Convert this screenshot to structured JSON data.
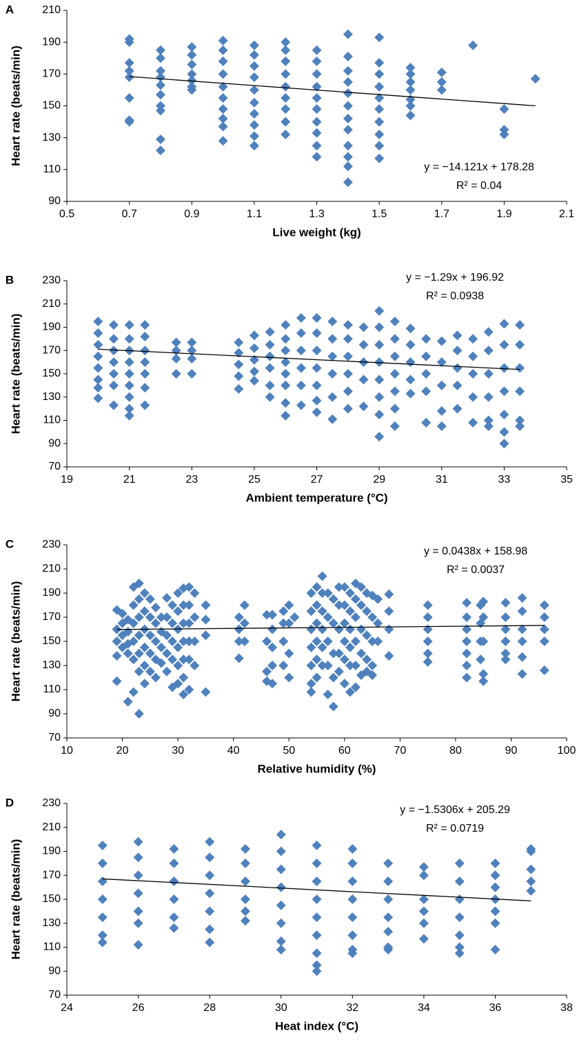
{
  "chart_data": [
    {
      "type": "scatter",
      "panel_label": "A",
      "x_label": "Live weight (kg)",
      "y_label": "Heart rate (beats/min)",
      "color": "#4f81bd",
      "equation": "y = −14.121x + 178.28",
      "r_squared": "R² = 0.04",
      "trendline": {
        "slope": -14.121,
        "intercept": 178.28
      },
      "xlim": [
        0.5,
        2.1
      ],
      "xticks": [
        0.5,
        0.7,
        0.9,
        1.1,
        1.3,
        1.5,
        1.7,
        1.9,
        2.1
      ],
      "ylim": [
        90,
        210
      ],
      "yticks": [
        90,
        110,
        130,
        150,
        170,
        190,
        210
      ],
      "x": [
        0.7,
        0.7,
        0.7,
        0.7,
        0.7,
        0.7,
        0.7,
        0.7,
        0.8,
        0.8,
        0.8,
        0.8,
        0.8,
        0.8,
        0.8,
        0.8,
        0.8,
        0.8,
        0.9,
        0.9,
        0.9,
        0.9,
        0.9,
        0.9,
        0.9,
        1.0,
        1.0,
        1.0,
        1.0,
        1.0,
        1.0,
        1.0,
        1.0,
        1.0,
        1.0,
        1.1,
        1.1,
        1.1,
        1.1,
        1.1,
        1.1,
        1.1,
        1.1,
        1.1,
        1.1,
        1.2,
        1.2,
        1.2,
        1.2,
        1.2,
        1.2,
        1.2,
        1.2,
        1.2,
        1.3,
        1.3,
        1.3,
        1.3,
        1.3,
        1.3,
        1.3,
        1.3,
        1.3,
        1.3,
        1.4,
        1.4,
        1.4,
        1.4,
        1.4,
        1.4,
        1.4,
        1.4,
        1.4,
        1.4,
        1.4,
        1.4,
        1.5,
        1.5,
        1.5,
        1.5,
        1.5,
        1.5,
        1.5,
        1.5,
        1.5,
        1.5,
        1.6,
        1.6,
        1.6,
        1.6,
        1.6,
        1.6,
        1.6,
        1.7,
        1.7,
        1.7,
        1.8,
        1.9,
        1.9,
        1.9,
        2.0
      ],
      "values": [
        192,
        190,
        177,
        172,
        168,
        155,
        141,
        140,
        185,
        180,
        172,
        168,
        163,
        157,
        150,
        147,
        129,
        122,
        187,
        182,
        176,
        170,
        166,
        162,
        160,
        191,
        185,
        178,
        170,
        162,
        155,
        148,
        142,
        137,
        128,
        188,
        182,
        175,
        168,
        160,
        152,
        145,
        138,
        131,
        125,
        190,
        185,
        178,
        170,
        162,
        155,
        148,
        140,
        132,
        185,
        178,
        170,
        162,
        155,
        148,
        140,
        133,
        125,
        118,
        195,
        181,
        172,
        165,
        158,
        150,
        142,
        135,
        125,
        118,
        112,
        102,
        193,
        177,
        170,
        162,
        155,
        148,
        140,
        132,
        125,
        117,
        174,
        170,
        165,
        160,
        154,
        150,
        144,
        171,
        165,
        160,
        188,
        148,
        135,
        132,
        167
      ]
    },
    {
      "type": "scatter",
      "panel_label": "B",
      "x_label": "Ambient temperature (°C)",
      "y_label": "Heart rate (beats/min)",
      "color": "#4f81bd",
      "equation": "y = −1.29x + 196.92",
      "r_squared": "R² = 0.0938",
      "trendline": {
        "slope": -1.29,
        "intercept": 196.92
      },
      "xlim": [
        19,
        35
      ],
      "xticks": [
        19,
        21,
        23,
        25,
        27,
        29,
        31,
        33,
        35
      ],
      "ylim": [
        70,
        230
      ],
      "yticks": [
        70,
        90,
        110,
        130,
        150,
        170,
        190,
        210,
        230
      ],
      "x": [
        20,
        20,
        20,
        20,
        20,
        20,
        20,
        20,
        20.5,
        20.5,
        20.5,
        20.5,
        20.5,
        20.5,
        20.5,
        21,
        21,
        21,
        21,
        21,
        21,
        21,
        21,
        21,
        21.5,
        21.5,
        21.5,
        21.5,
        21.5,
        21.5,
        21.5,
        22.5,
        22.5,
        22.5,
        22.5,
        23,
        23,
        23,
        23,
        24.5,
        24.5,
        24.5,
        24.5,
        24.5,
        25,
        25,
        25,
        25,
        25,
        25.5,
        25.5,
        25.5,
        25.5,
        25.5,
        25.5,
        26,
        26,
        26,
        26,
        26,
        26,
        26,
        26,
        26.5,
        26.5,
        26.5,
        26.5,
        26.5,
        26.5,
        27,
        27,
        27,
        27,
        27,
        27,
        27,
        27.5,
        27.5,
        27.5,
        27.5,
        27.5,
        27.5,
        28,
        28,
        28,
        28,
        28,
        28,
        28.5,
        28.5,
        28.5,
        28.5,
        28.5,
        29,
        29,
        29,
        29,
        29,
        29,
        29,
        29,
        29.5,
        29.5,
        29.5,
        29.5,
        29.5,
        29.5,
        29.5,
        30,
        30,
        30,
        30,
        30,
        30.5,
        30.5,
        30.5,
        30.5,
        30.5,
        31,
        31,
        31,
        31,
        31,
        31.5,
        31.5,
        31.5,
        31.5,
        31.5,
        32,
        32,
        32,
        32,
        32,
        32.5,
        32.5,
        32.5,
        32.5,
        32.5,
        32.5,
        33,
        33,
        33,
        33,
        33,
        33,
        33,
        33.5,
        33.5,
        33.5,
        33.5,
        33.5,
        33.5
      ],
      "values": [
        195,
        185,
        175,
        165,
        155,
        145,
        138,
        129,
        192,
        180,
        170,
        160,
        150,
        140,
        123,
        192,
        180,
        170,
        160,
        150,
        140,
        130,
        120,
        114,
        192,
        182,
        170,
        160,
        150,
        138,
        123,
        177,
        170,
        163,
        150,
        177,
        170,
        163,
        150,
        177,
        168,
        158,
        148,
        137,
        183,
        172,
        162,
        152,
        144,
        186,
        175,
        165,
        155,
        140,
        130,
        192,
        180,
        170,
        160,
        150,
        140,
        125,
        114,
        198,
        185,
        170,
        155,
        140,
        123,
        198,
        185,
        170,
        155,
        140,
        127,
        117,
        195,
        180,
        165,
        150,
        130,
        111,
        192,
        180,
        165,
        150,
        135,
        120,
        190,
        175,
        160,
        145,
        122,
        204,
        190,
        175,
        160,
        145,
        130,
        115,
        96,
        195,
        180,
        165,
        150,
        135,
        120,
        105,
        189,
        175,
        160,
        145,
        133,
        180,
        165,
        150,
        135,
        108,
        178,
        160,
        140,
        118,
        105,
        183,
        170,
        155,
        140,
        120,
        180,
        165,
        150,
        130,
        108,
        186,
        170,
        150,
        130,
        110,
        105,
        193,
        175,
        155,
        135,
        115,
        100,
        90,
        192,
        175,
        155,
        135,
        110,
        105
      ]
    },
    {
      "type": "scatter",
      "panel_label": "C",
      "x_label": "Relative humidity (%)",
      "y_label": "Heart rate (beats/min)",
      "color": "#4f81bd",
      "equation": "y = 0.0438x + 158.98",
      "r_squared": "R² = 0.0037",
      "trendline": {
        "slope": 0.0438,
        "intercept": 158.98
      },
      "xlim": [
        10,
        100
      ],
      "xticks": [
        10,
        20,
        30,
        40,
        50,
        60,
        70,
        80,
        90,
        100
      ],
      "ylim": [
        70,
        230
      ],
      "yticks": [
        70,
        90,
        110,
        130,
        150,
        170,
        190,
        210,
        230
      ],
      "x": [
        19,
        19,
        19,
        19,
        19,
        20,
        20,
        20,
        20,
        21,
        21,
        21,
        21,
        21,
        22,
        22,
        22,
        22,
        22,
        22,
        23,
        23,
        23,
        23,
        23,
        23,
        23,
        24,
        24,
        24,
        24,
        24,
        24,
        25,
        25,
        25,
        25,
        25,
        26,
        26,
        26,
        26,
        26,
        27,
        27,
        27,
        27,
        28,
        28,
        28,
        28,
        28,
        29,
        29,
        29,
        29,
        29,
        30,
        30,
        30,
        30,
        30,
        30,
        31,
        31,
        31,
        31,
        31,
        31,
        31,
        32,
        32,
        32,
        32,
        32,
        32,
        33,
        33,
        33,
        33,
        35,
        35,
        35,
        35,
        41,
        41,
        41,
        41,
        42,
        42,
        42,
        46,
        46,
        46,
        46,
        47,
        47,
        47,
        47,
        47,
        49,
        49,
        49,
        49,
        50,
        50,
        50,
        50,
        51,
        54,
        54,
        54,
        54,
        54,
        54,
        54,
        55,
        55,
        55,
        55,
        55,
        55,
        56,
        56,
        56,
        56,
        56,
        56,
        57,
        57,
        57,
        57,
        57,
        58,
        58,
        58,
        58,
        58,
        59,
        59,
        59,
        59,
        59,
        60,
        60,
        60,
        60,
        60,
        60,
        61,
        61,
        61,
        61,
        61,
        61,
        62,
        62,
        62,
        62,
        62,
        62,
        63,
        63,
        63,
        63,
        63,
        64,
        64,
        64,
        64,
        64,
        65,
        65,
        65,
        65,
        65,
        66,
        66,
        66,
        68,
        68,
        68,
        68,
        75,
        75,
        75,
        75,
        75,
        75,
        82,
        82,
        82,
        82,
        82,
        82,
        82,
        84.5,
        84.5,
        84.5,
        84.5,
        85,
        85,
        85,
        85,
        85,
        89,
        89,
        89,
        89,
        89,
        89,
        92,
        92,
        92,
        92,
        92,
        92,
        96,
        96,
        96,
        96,
        96
      ],
      "values": [
        176,
        160,
        150,
        138,
        117,
        173,
        165,
        155,
        145,
        168,
        158,
        148,
        140,
        100,
        195,
        180,
        165,
        150,
        135,
        108,
        198,
        185,
        170,
        155,
        140,
        125,
        90,
        190,
        175,
        160,
        145,
        130,
        115,
        185,
        170,
        155,
        140,
        125,
        178,
        165,
        150,
        135,
        120,
        170,
        158,
        145,
        132,
        186,
        170,
        155,
        140,
        125,
        180,
        165,
        150,
        135,
        112,
        190,
        175,
        160,
        145,
        130,
        115,
        194,
        180,
        165,
        150,
        135,
        120,
        106,
        195,
        180,
        165,
        150,
        135,
        110,
        190,
        170,
        150,
        130,
        180,
        168,
        155,
        108,
        170,
        160,
        150,
        136,
        180,
        165,
        150,
        172,
        150,
        125,
        117,
        172,
        160,
        145,
        130,
        115,
        175,
        165,
        150,
        130,
        180,
        165,
        140,
        120,
        170,
        190,
        175,
        160,
        145,
        130,
        115,
        108,
        195,
        180,
        165,
        150,
        135,
        120,
        204,
        190,
        175,
        160,
        145,
        130,
        190,
        170,
        150,
        130,
        106,
        185,
        165,
        140,
        120,
        96,
        195,
        180,
        160,
        140,
        125,
        195,
        180,
        165,
        150,
        135,
        115,
        190,
        175,
        160,
        145,
        130,
        108,
        198,
        185,
        170,
        150,
        130,
        112,
        195,
        180,
        160,
        140,
        122,
        190,
        175,
        155,
        135,
        125,
        188,
        170,
        150,
        130,
        122,
        185,
        165,
        150,
        189,
        175,
        160,
        138,
        180,
        170,
        160,
        150,
        140,
        133,
        182,
        170,
        160,
        150,
        140,
        130,
        120,
        180,
        165,
        150,
        135,
        183,
        170,
        150,
        123,
        117,
        182,
        170,
        160,
        150,
        140,
        135,
        186,
        175,
        160,
        150,
        137,
        123,
        180,
        170,
        160,
        150,
        126
      ]
    },
    {
      "type": "scatter",
      "panel_label": "D",
      "x_label": "Heat index (°C)",
      "y_label": "Heart rate (beats/min)",
      "color": "#4f81bd",
      "equation": "y = −1.5306x + 205.29",
      "r_squared": "R² = 0.0719",
      "trendline": {
        "slope": -1.5306,
        "intercept": 205.29
      },
      "xlim": [
        24,
        38
      ],
      "xticks": [
        24,
        26,
        28,
        30,
        32,
        34,
        36,
        38
      ],
      "ylim": [
        70,
        230
      ],
      "yticks": [
        70,
        90,
        110,
        130,
        150,
        170,
        190,
        210,
        230
      ],
      "x": [
        25,
        25,
        25,
        25,
        25,
        25,
        25,
        26,
        26,
        26,
        26,
        26,
        26,
        26,
        27,
        27,
        27,
        27,
        27,
        27,
        28,
        28,
        28,
        28,
        28,
        28,
        28,
        29,
        29,
        29,
        29,
        29,
        29,
        30,
        30,
        30,
        30,
        30,
        30,
        30,
        30,
        31,
        31,
        31,
        31,
        31,
        31,
        31,
        31,
        31,
        32,
        32,
        32,
        32,
        32,
        32,
        32,
        32,
        33,
        33,
        33,
        33,
        33,
        33,
        33,
        34,
        34,
        34,
        34,
        34,
        34,
        35,
        35,
        35,
        35,
        35,
        35,
        35,
        36,
        36,
        36,
        36,
        36,
        36,
        36,
        37,
        37,
        37,
        37,
        37
      ],
      "values": [
        195,
        180,
        165,
        150,
        135,
        120,
        114,
        198,
        185,
        170,
        155,
        140,
        130,
        112,
        192,
        180,
        165,
        150,
        135,
        126,
        198,
        185,
        170,
        155,
        140,
        125,
        114,
        192,
        180,
        165,
        150,
        140,
        132,
        204,
        190,
        175,
        160,
        145,
        130,
        115,
        108,
        195,
        180,
        165,
        150,
        135,
        120,
        105,
        95,
        90,
        192,
        180,
        165,
        150,
        135,
        120,
        108,
        105,
        180,
        165,
        150,
        135,
        123,
        110,
        108,
        177,
        170,
        150,
        140,
        130,
        117,
        180,
        165,
        150,
        135,
        120,
        110,
        105,
        180,
        170,
        160,
        150,
        140,
        130,
        108,
        192,
        190,
        175,
        165,
        157
      ]
    }
  ]
}
